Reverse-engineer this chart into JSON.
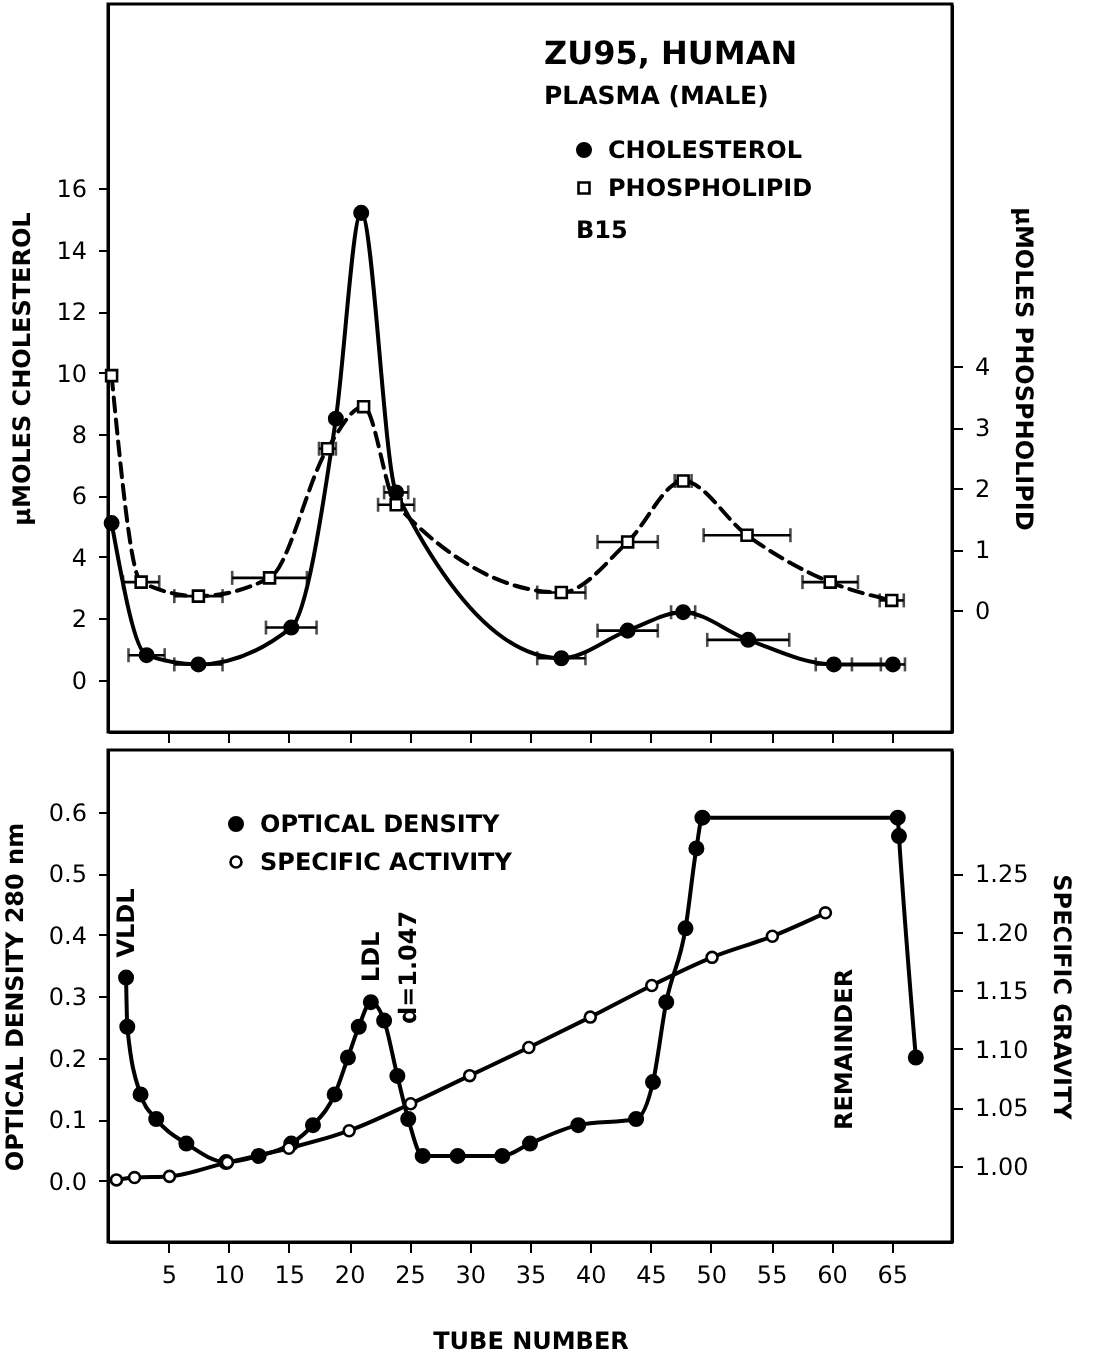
{
  "chart_data": [
    {
      "type": "line",
      "title": "ZU95, HUMAN",
      "subtitle": "PLASMA (MALE)",
      "ylabel": "μMOLES CHOLESTEROL",
      "y2label": "μMOLES PHOSPHOLIPID",
      "xlim": [
        0,
        70
      ],
      "xticks": [
        {
          "value": 5,
          "label": null
        },
        {
          "value": 10,
          "label": null
        },
        {
          "value": 15,
          "label": null
        },
        {
          "value": 20,
          "label": null
        },
        {
          "value": 25,
          "label": null
        },
        {
          "value": 30,
          "label": null
        },
        {
          "value": 35,
          "label": null
        },
        {
          "value": 40,
          "label": null
        },
        {
          "value": 45,
          "label": null
        },
        {
          "value": 50,
          "label": null
        },
        {
          "value": 55,
          "label": null
        },
        {
          "value": 60,
          "label": null
        },
        {
          "value": 65,
          "label": null
        }
      ],
      "ylim": [
        -1.7,
        22
      ],
      "yticks": [
        0,
        2,
        4,
        6,
        8,
        10,
        12,
        14,
        16
      ],
      "y2lim": [
        -2,
        9.95
      ],
      "y2ticks": [
        0,
        1,
        2,
        3,
        4
      ],
      "tick_labels": "y",
      "legend": "top right",
      "grid": false,
      "annotations": [
        "B15"
      ],
      "series": [
        {
          "name": "CHOLESTEROL",
          "color": "#000000",
          "marker": "circle",
          "line_style": "solid",
          "x": [
            0.3,
            3.2,
            7.5,
            15.2,
            18.9,
            21.0,
            23.9,
            37.6,
            43.1,
            47.7,
            53.1,
            60.2,
            65.1
          ],
          "values": [
            5.1,
            0.8,
            0.5,
            1.7,
            8.5,
            15.2,
            6.1,
            0.7,
            1.6,
            2.2,
            1.3,
            0.5,
            0.5
          ],
          "xerrors": [
            null,
            1.5,
            2,
            2.1,
            null,
            null,
            1,
            2,
            2.5,
            1,
            3.4,
            1.5,
            1
          ]
        },
        {
          "name": "PHOSPHOLIPID",
          "color": "#000000",
          "axis": "y2",
          "marker": "square",
          "line_style": "dashed",
          "x": [
            0.3,
            2.75,
            7.5,
            13.4,
            18.2,
            21.2,
            23.9,
            37.6,
            43.1,
            47.7,
            53.0,
            59.9,
            65.0
          ],
          "values": [
            3.85,
            0.46,
            0.23,
            0.53,
            2.65,
            3.34,
            1.73,
            0.29,
            1.12,
            2.12,
            1.23,
            0.46,
            0.16
          ],
          "xerrors": [
            null,
            1.5,
            2,
            3.1,
            0.7,
            null,
            1.5,
            2,
            2.5,
            0.7,
            3.6,
            2.3,
            1
          ]
        }
      ]
    },
    {
      "type": "line",
      "xlabel": "TUBE NUMBER",
      "ylabel": "OPTICAL DENSITY 280 nm",
      "y2label": "SPECIFIC GRAVITY",
      "xlim": [
        0,
        70
      ],
      "xticks": [
        5,
        10,
        15,
        20,
        25,
        30,
        35,
        40,
        45,
        50,
        55,
        60,
        65
      ],
      "ylim": [
        -0.1,
        0.7
      ],
      "yticks": [
        {
          "value": 0,
          "label": "0.0"
        },
        {
          "value": 0.1,
          "label": "0.1"
        },
        {
          "value": 0.2,
          "label": "0.2"
        },
        {
          "value": 0.3,
          "label": "0.3"
        },
        {
          "value": 0.4,
          "label": "0.4"
        },
        {
          "value": 0.5,
          "label": "0.5"
        },
        {
          "value": 0.6,
          "label": "0.6"
        }
      ],
      "y2lim": [
        0.935,
        1.355
      ],
      "y2ticks": [
        {
          "value": 1,
          "label": "1.00"
        },
        {
          "value": 1.05,
          "label": "1.05"
        },
        {
          "value": 1.1,
          "label": "1.10"
        },
        {
          "value": 1.15,
          "label": "1.15"
        },
        {
          "value": 1.2,
          "label": "1.20"
        },
        {
          "value": 1.25,
          "label": "1.25"
        }
      ],
      "legend": "top left",
      "grid": false,
      "annotations": [
        {
          "text": "VLDL",
          "x": 1.5,
          "y": 0.33
        },
        {
          "text": "LDL",
          "x": 21.8,
          "y": 0.29
        },
        "d=1.047",
        "REMAINDER"
      ],
      "series": [
        {
          "name": "OPTICAL DENSITY",
          "color": "#000000",
          "marker": "circle",
          "line_style": "solid",
          "x": [
            1.5,
            1.6,
            2.7,
            4.0,
            6.5,
            9.8,
            12.5,
            15.2,
            17,
            18.8,
            19.9,
            20.8,
            21.8,
            22.9,
            24.0,
            24.9,
            26.1,
            29,
            32.7,
            35,
            39,
            43.8,
            45.2,
            46.3,
            47.9,
            48.8,
            49.3,
            65.5,
            65.6,
            67.0
          ],
          "values": [
            0.33,
            0.25,
            0.14,
            0.1,
            0.06,
            0.03,
            0.04,
            0.06,
            0.09,
            0.14,
            0.2,
            0.25,
            0.29,
            0.26,
            0.17,
            0.1,
            0.04,
            0.04,
            0.04,
            0.06,
            0.09,
            0.1,
            0.16,
            0.29,
            0.41,
            0.54,
            0.59,
            0.59,
            0.56,
            0.2
          ]
        },
        {
          "name": "SPECIFIC ACTIVITY",
          "color": "#000000",
          "axis": "y2",
          "marker": "circle",
          "line_style": "solid",
          "x": [
            0.7,
            2.2,
            5.1,
            9.9,
            15,
            20,
            25.1,
            30,
            34.9,
            40,
            45.1,
            50.1,
            55.1,
            59.5
          ],
          "values": [
            0.988,
            0.99,
            0.991,
            1.003,
            1.015,
            1.03,
            1.053,
            1.077,
            1.101,
            1.127,
            1.154,
            1.178,
            1.196,
            1.216
          ]
        }
      ]
    }
  ]
}
